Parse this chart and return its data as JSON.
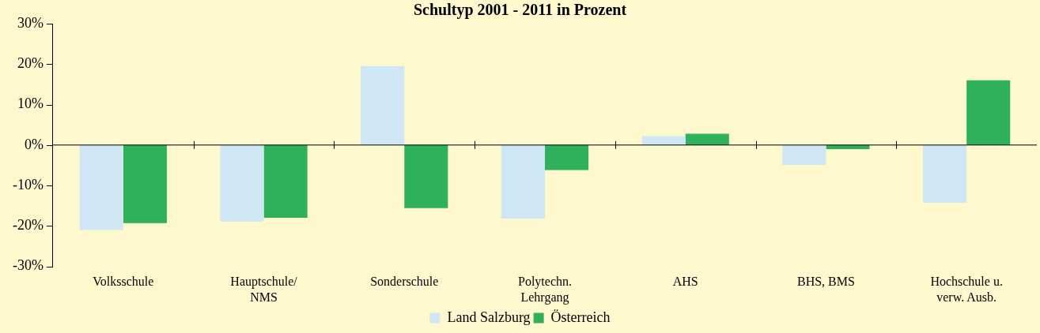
{
  "chart_data": {
    "type": "bar",
    "title": "Schultyp 2001 - 2011 in Prozent",
    "categories": [
      "Volksschule",
      "Hauptschule/ NMS",
      "Sonderschule",
      "Polytechn. Lehrgang",
      "AHS",
      "BHS, BMS",
      "Hochschule u. verw. Ausb."
    ],
    "series": [
      {
        "name": "Land Salzburg",
        "color": "#cfe6f5",
        "values": [
          -21,
          -18.9,
          19.5,
          -18.2,
          2.2,
          -4.9,
          -14.3
        ]
      },
      {
        "name": "Österreich",
        "color": "#2fb05a",
        "values": [
          -19.3,
          -18,
          -15.6,
          -6.2,
          2.8,
          -1,
          16
        ]
      }
    ],
    "ylim": [
      -30,
      30
    ],
    "yticks": [
      {
        "value": -30,
        "label": "-30%"
      },
      {
        "value": -20,
        "label": "-20%"
      },
      {
        "value": -10,
        "label": "-10%"
      },
      {
        "value": 0,
        "label": "0%"
      },
      {
        "value": 10,
        "label": "10%"
      },
      {
        "value": 20,
        "label": "20%"
      },
      {
        "value": 30,
        "label": "30%"
      }
    ],
    "legend": "bottom"
  }
}
